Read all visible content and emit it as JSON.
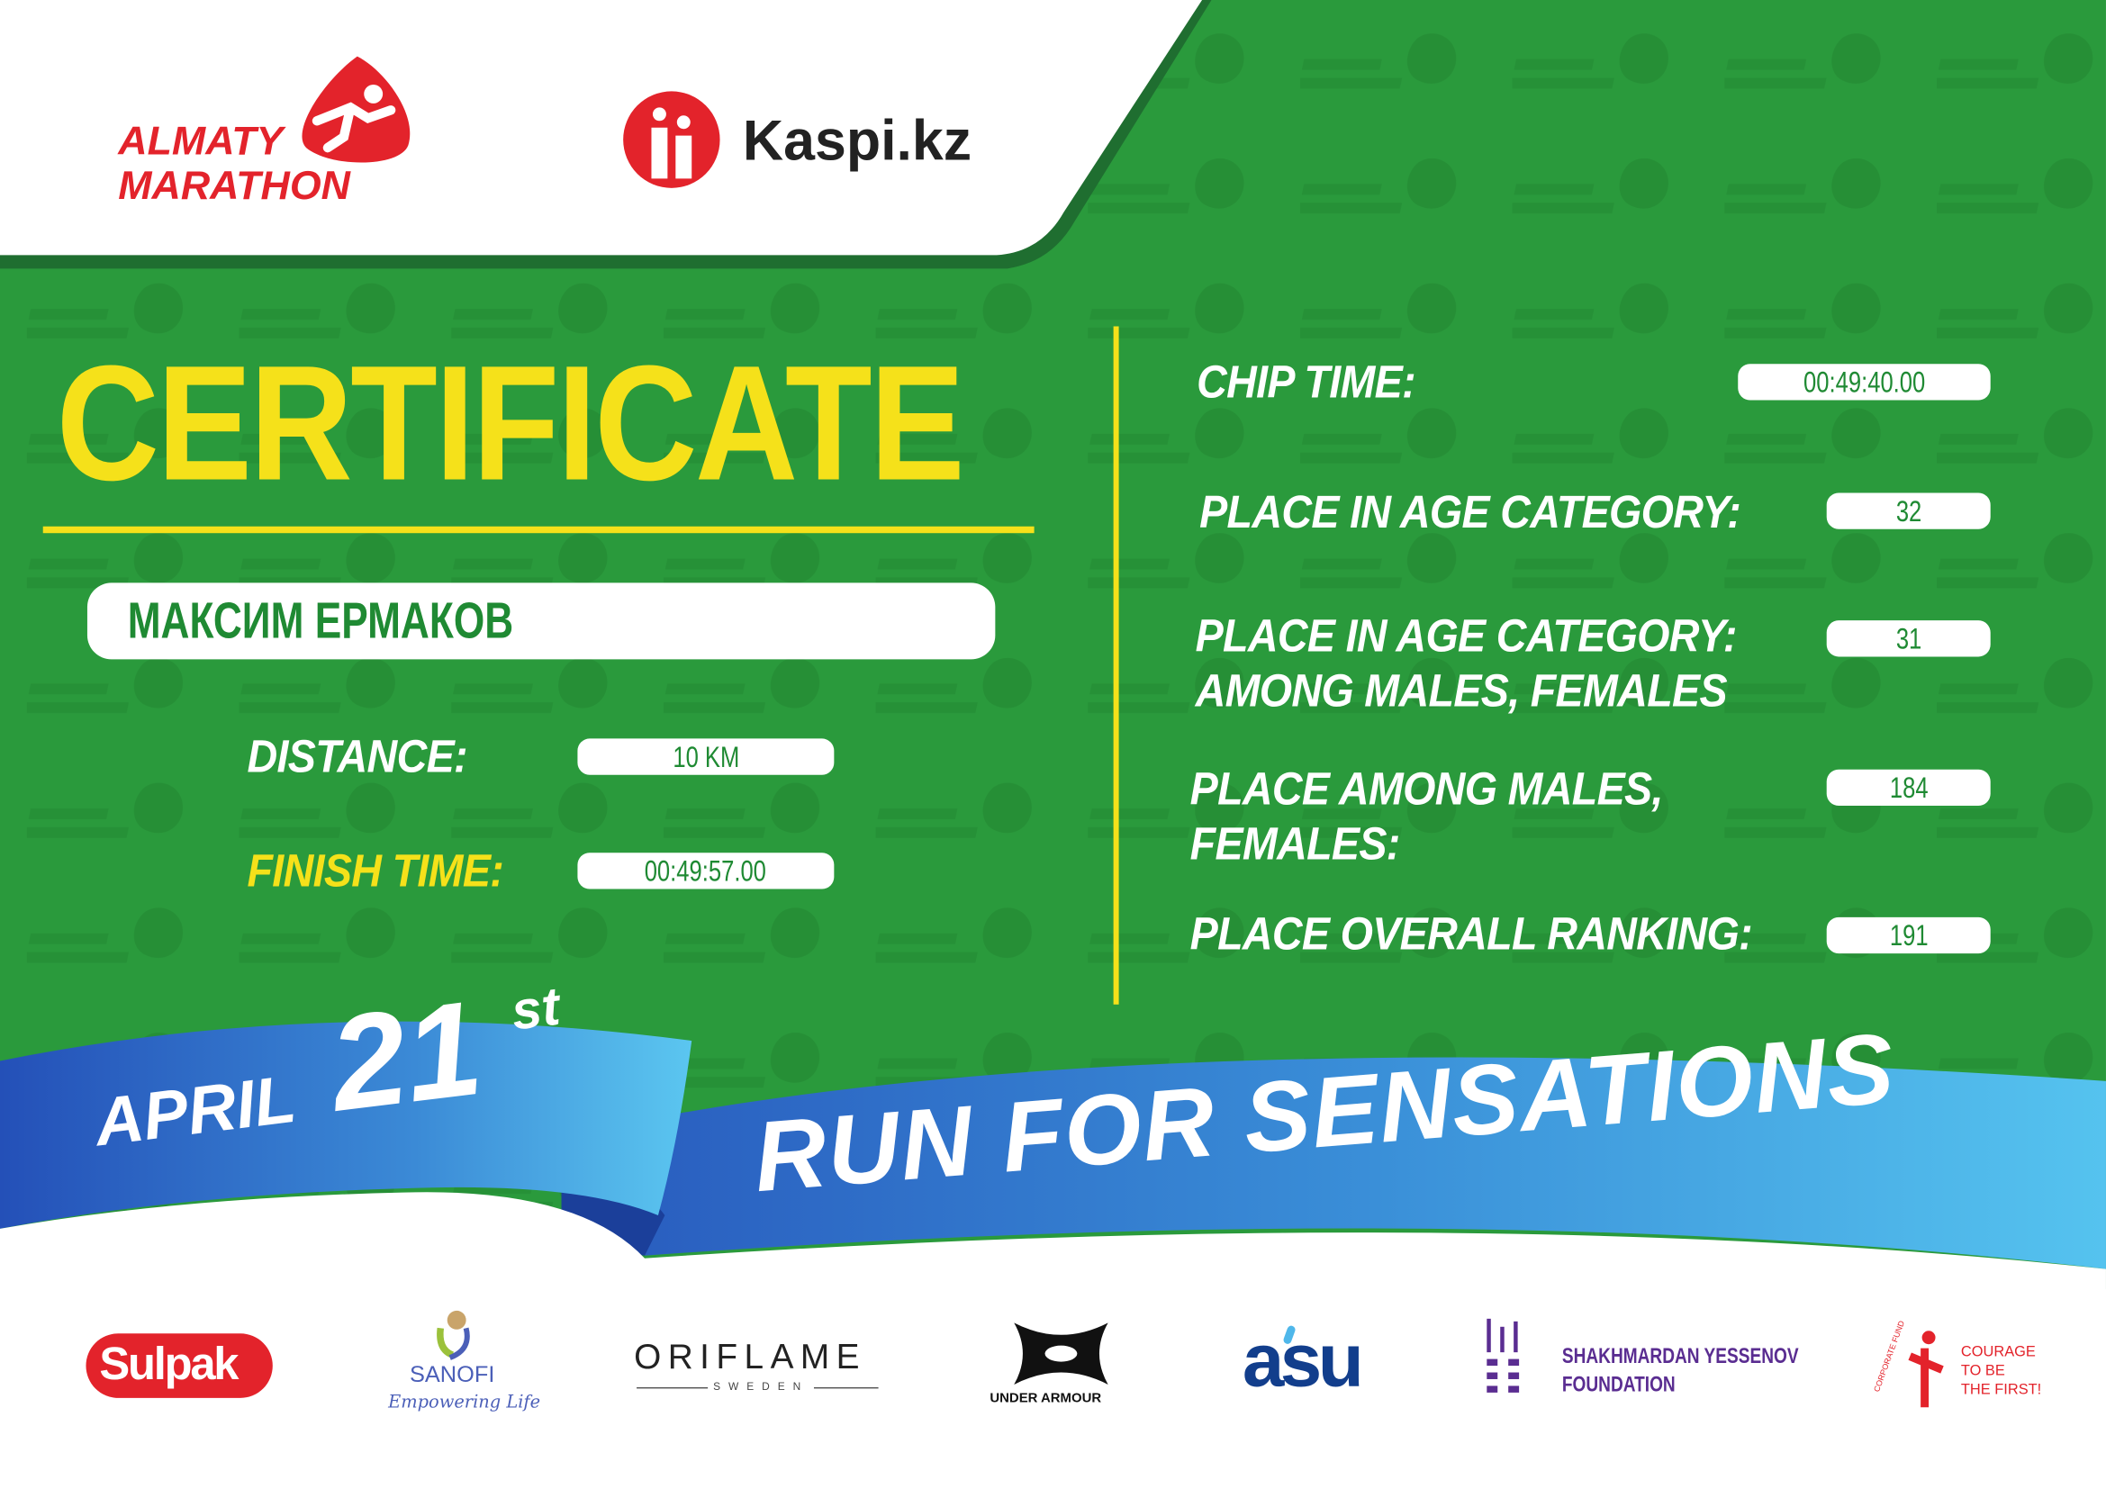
{
  "header": {
    "event_logo": {
      "line1": "ALMATY",
      "line2": "MARATHON"
    },
    "sponsor_logo": "Kaspi.kz"
  },
  "certificate": {
    "title": "CERTIFICATE",
    "runner_name": "МАКСИМ ЕРМАКОВ",
    "distance_label": "DISTANCE:",
    "distance_value": "10 KM",
    "finish_time_label": "FINISH TIME:",
    "finish_time_value": "00:49:57.00"
  },
  "results": {
    "chip_time_label": "CHIP TIME:",
    "chip_time_value": "00:49:40.00",
    "age_category_label": "PLACE IN AGE CATEGORY:",
    "age_category_value": "32",
    "age_category_gender_label_1": "PLACE IN AGE CATEGORY:",
    "age_category_gender_label_2": "AMONG MALES, FEMALES",
    "age_category_gender_value": "31",
    "gender_label_1": "PLACE AMONG MALES,",
    "gender_label_2": "FEMALES:",
    "gender_value": "184",
    "overall_label": "PLACE OVERALL RANKING:",
    "overall_value": "191"
  },
  "banner": {
    "month": "APRIL",
    "day": "21",
    "suffix": "st",
    "slogan": "RUN FOR SENSATIONS"
  },
  "sponsors": {
    "sulpak": "Sulpak",
    "sanofi": "SANOFI",
    "sanofi_tagline": "Empowering Life",
    "oriflame": "ORIFLAME",
    "oriflame_sub": "SWEDEN",
    "under_armour": "UNDER ARMOUR",
    "asu": "asu",
    "yessenov_1": "SHAKHMARDAN YESSENOV",
    "yessenov_2": "FOUNDATION",
    "courage_arc": "CORPORATE FUND",
    "courage_1": "COURAGE",
    "courage_2": "TO BE",
    "courage_3": "THE FIRST!"
  },
  "colors": {
    "green": "#2a9a3c",
    "yellow": "#f5e11a",
    "red": "#e3232b",
    "blue": "#2f7fd0",
    "purple": "#5a2d91"
  }
}
